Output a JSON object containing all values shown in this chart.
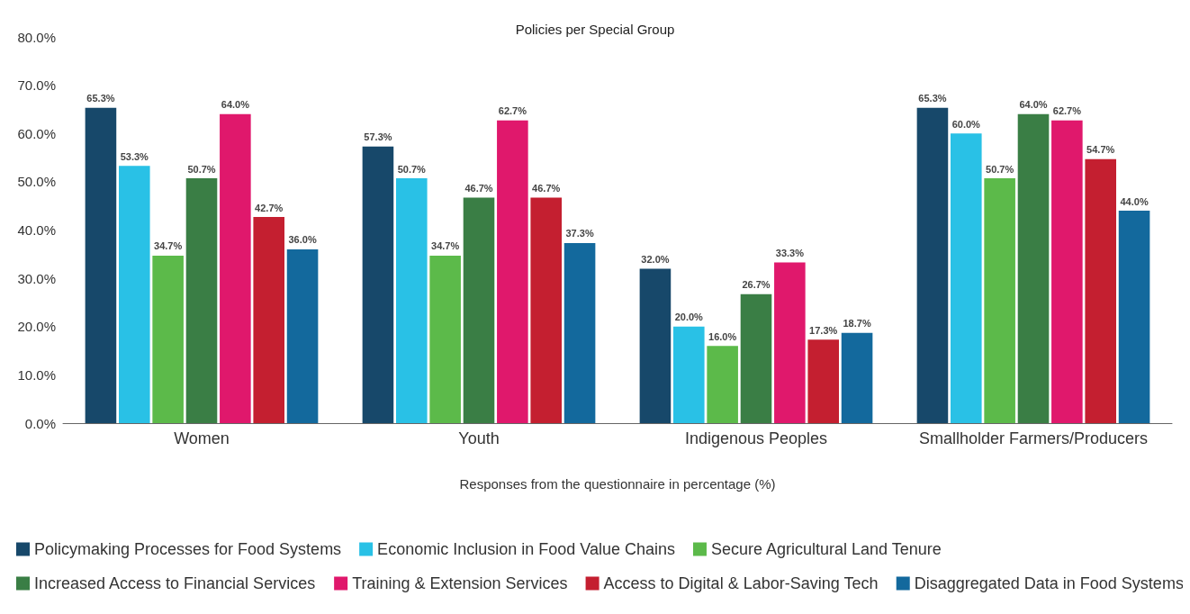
{
  "chart_data": {
    "type": "bar",
    "title": "Policies per Special Group",
    "xlabel": "Responses from the questionnaire in percentage (%)",
    "categories": [
      "Women",
      "Youth",
      "Indigenous Peoples",
      "Smallholder Farmers/Producers"
    ],
    "series": [
      {
        "name": "Policymaking Processes for Food Systems",
        "color": "#17486a",
        "values": [
          65.3,
          57.3,
          32.0,
          65.3
        ],
        "value_labels": [
          "65.3%",
          "57.3%",
          "32.0%",
          "65.3%"
        ]
      },
      {
        "name": "Economic Inclusion in Food Value Chains",
        "color": "#29c1e6",
        "values": [
          53.3,
          50.7,
          20.0,
          60.0
        ],
        "value_labels": [
          "53.3%",
          "50.7%",
          "20.0%",
          "60.0%"
        ]
      },
      {
        "name": "Secure Agricultural Land Tenure",
        "color": "#5cba4a",
        "values": [
          34.7,
          34.7,
          16.0,
          50.7
        ],
        "value_labels": [
          "34.7%",
          "34.7%",
          "16.0%",
          "50.7%"
        ]
      },
      {
        "name": "Increased Access to Financial Services",
        "color": "#3a7e45",
        "values": [
          50.7,
          46.7,
          26.7,
          64.0
        ],
        "value_labels": [
          "50.7%",
          "46.7%",
          "26.7%",
          "64.0%"
        ]
      },
      {
        "name": "Training & Extension Services",
        "color": "#e0186c",
        "values": [
          64.0,
          62.7,
          33.3,
          62.7
        ],
        "value_labels": [
          "64.0%",
          "62.7%",
          "33.3%",
          "62.7%"
        ]
      },
      {
        "name": "Access to Digital & Labor-Saving Tech",
        "color": "#c41f30",
        "values": [
          42.7,
          46.7,
          17.3,
          54.7
        ],
        "value_labels": [
          "42.7%",
          "46.7%",
          "17.3%",
          "54.7%"
        ]
      },
      {
        "name": "Disaggregated Data in Food Systems",
        "color": "#13699d",
        "values": [
          36.0,
          37.3,
          18.7,
          44.0
        ],
        "value_labels": [
          "36.0%",
          "37.3%",
          "18.7%",
          "44.0%"
        ]
      }
    ],
    "ylim": [
      0,
      80
    ],
    "yticks": [
      {
        "value": 0,
        "label": "0.0%"
      },
      {
        "value": 10,
        "label": "10.0%"
      },
      {
        "value": 20,
        "label": "20.0%"
      },
      {
        "value": 30,
        "label": "30.0%"
      },
      {
        "value": 40,
        "label": "40.0%"
      },
      {
        "value": 50,
        "label": "50.0%"
      },
      {
        "value": 60,
        "label": "60.0%"
      },
      {
        "value": 70,
        "label": "70.0%"
      },
      {
        "value": 80,
        "label": "80.0%"
      }
    ],
    "grid": false,
    "legend": "bottom"
  }
}
